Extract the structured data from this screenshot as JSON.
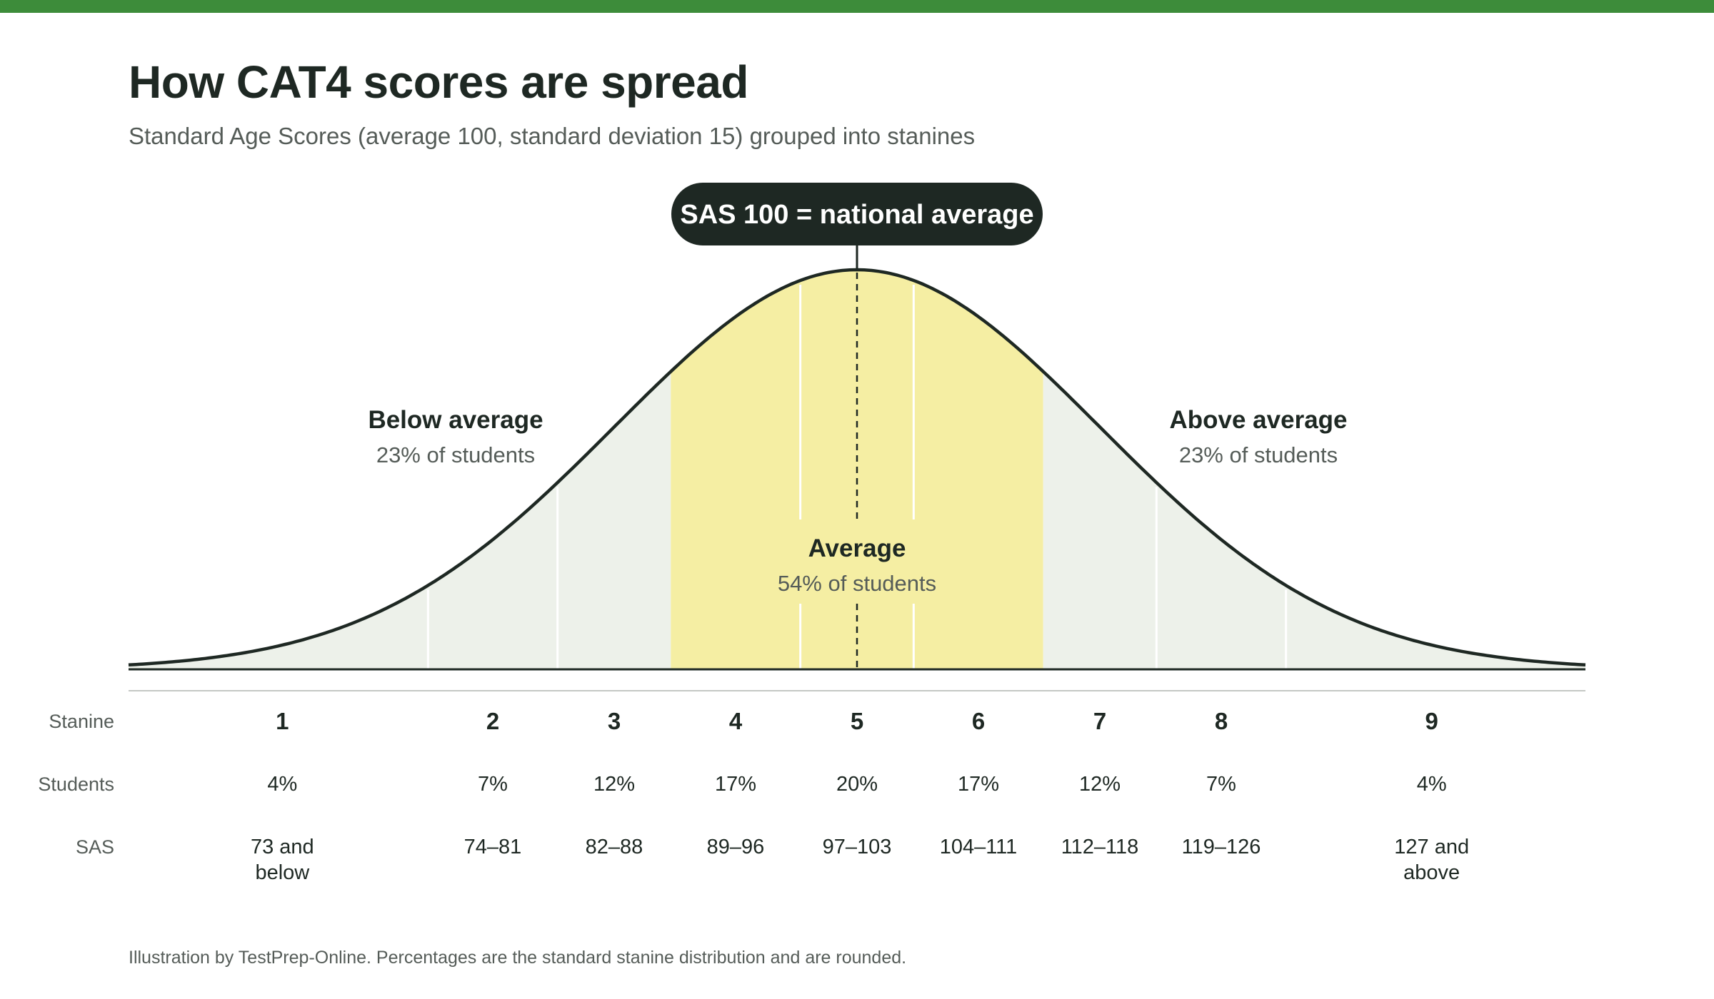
{
  "header": {
    "title": "How CAT4 scores are spread",
    "subtitle": "Standard Age Scores (average 100, standard deviation 15) grouped into stanines"
  },
  "callout": {
    "label": "SAS 100 = national average"
  },
  "groups": {
    "below": {
      "label": "Below average",
      "share": "23% of students"
    },
    "average": {
      "label": "Average",
      "share": "54% of students"
    },
    "above": {
      "label": "Above average",
      "share": "23% of students"
    }
  },
  "table": {
    "row_labels": {
      "stanine": "Stanine",
      "students": "Students",
      "sas": "SAS"
    }
  },
  "footnote": "Illustration by TestPrep-Online. Percentages are the standard stanine distribution and are rounded.",
  "colors": {
    "accent_bar": "#3d8c3a",
    "average_fill": "#f5eea3",
    "outer_fill": "#edf1ea",
    "curve": "#1e2823",
    "callout_bg": "#1e2823"
  },
  "chart_data": {
    "type": "area",
    "distribution": {
      "mean": 100,
      "sd": 15
    },
    "x_range": [
      55,
      145
    ],
    "mean_marker": 100,
    "stanine_boundaries": [
      73.5,
      81.5,
      88.5,
      96.5,
      103.5,
      111.5,
      118.5,
      126.5
    ],
    "average_band": [
      88.5,
      111.5
    ],
    "stanines": [
      {
        "stanine": "1",
        "students": "4%",
        "sas": "73 and below",
        "sas_lines": [
          "73 and",
          "below"
        ]
      },
      {
        "stanine": "2",
        "students": "7%",
        "sas": "74–81",
        "sas_lines": [
          "74–81"
        ]
      },
      {
        "stanine": "3",
        "students": "12%",
        "sas": "82–88",
        "sas_lines": [
          "82–88"
        ]
      },
      {
        "stanine": "4",
        "students": "17%",
        "sas": "89–96",
        "sas_lines": [
          "89–96"
        ]
      },
      {
        "stanine": "5",
        "students": "20%",
        "sas": "97–103",
        "sas_lines": [
          "97–103"
        ]
      },
      {
        "stanine": "6",
        "students": "17%",
        "sas": "104–111",
        "sas_lines": [
          "104–111"
        ]
      },
      {
        "stanine": "7",
        "students": "12%",
        "sas": "112–118",
        "sas_lines": [
          "112–118"
        ]
      },
      {
        "stanine": "8",
        "students": "7%",
        "sas": "119–126",
        "sas_lines": [
          "119–126"
        ]
      },
      {
        "stanine": "9",
        "students": "4%",
        "sas": "127 and above",
        "sas_lines": [
          "127 and",
          "above"
        ]
      }
    ]
  }
}
